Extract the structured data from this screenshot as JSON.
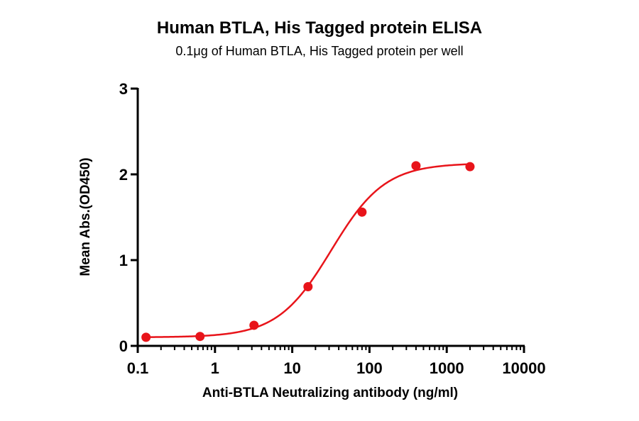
{
  "chart_data": {
    "type": "scatter",
    "title": "Human BTLA, His Tagged protein ELISA",
    "subtitle": "0.1μg of Human BTLA, His Tagged protein per well",
    "xlabel": "Anti-BTLA Neutralizing antibody (ng/ml)",
    "ylabel": "Mean Abs.(OD450)",
    "xscale": "log",
    "xlim": [
      0.1,
      10000
    ],
    "ylim": [
      0,
      3
    ],
    "xticks": [
      "0.1",
      "1",
      "10",
      "100",
      "1000",
      "10000"
    ],
    "yticks": [
      "0",
      "1",
      "2",
      "3"
    ],
    "grid": false,
    "series": [
      {
        "x": [
          0.128,
          0.64,
          3.2,
          16,
          80,
          400,
          2000
        ],
        "y": [
          0.1,
          0.11,
          0.24,
          0.69,
          1.56,
          2.1,
          2.09
        ],
        "color": "#e8141a",
        "fit": "four-parameter logistic curve"
      }
    ]
  }
}
